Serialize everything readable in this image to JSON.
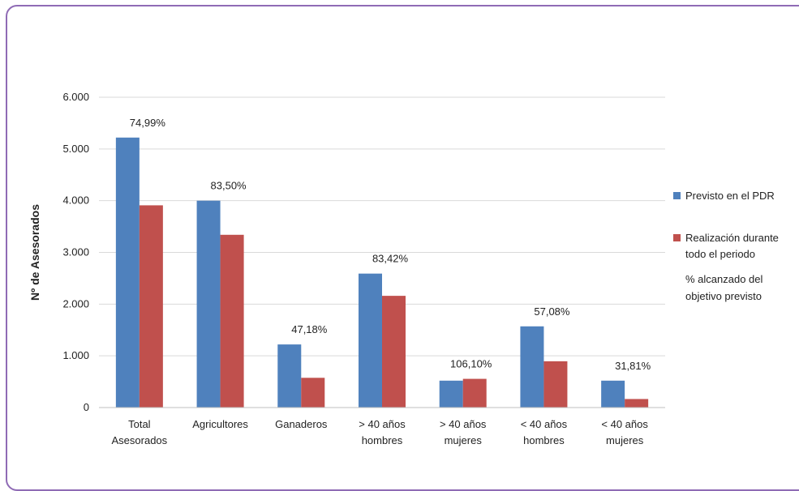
{
  "chart_data": {
    "type": "bar",
    "title": "",
    "xlabel": "",
    "ylabel": "Nº de Asesorados",
    "ylim": [
      0,
      6000
    ],
    "yticks": [
      "0",
      "1.000",
      "2.000",
      "3.000",
      "4.000",
      "5.000",
      "6.000"
    ],
    "grid": true,
    "legend_position": "right",
    "categories": [
      [
        "Total",
        "Asesorados"
      ],
      [
        "Agricultores"
      ],
      [
        "Ganaderos"
      ],
      [
        "> 40 años",
        "hombres"
      ],
      [
        "> 40 años",
        "mujeres"
      ],
      [
        "< 40 años",
        "hombres"
      ],
      [
        "< 40 años",
        "mujeres"
      ]
    ],
    "series": [
      {
        "name": "Previsto en el PDR",
        "color": "#4f81bd",
        "values": [
          5220,
          4000,
          1220,
          2590,
          520,
          1570,
          520
        ]
      },
      {
        "name": "Realización durante todo el periodo",
        "color": "#c0504d",
        "values": [
          3910,
          3340,
          575,
          2160,
          555,
          895,
          165
        ]
      }
    ],
    "annotations": [
      "74,99%",
      "83,50%",
      "47,18%",
      "83,42%",
      "106,10%",
      "57,08%",
      "31,81%"
    ],
    "legend_extra": "% alcanzado del objetivo previsto"
  }
}
